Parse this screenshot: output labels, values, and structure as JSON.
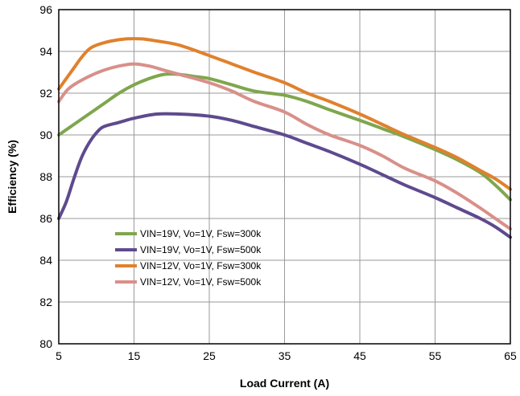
{
  "chart_data": {
    "type": "line",
    "title": "",
    "xlabel": "Load Current (A)",
    "ylabel": "Efficiency (%)",
    "xlim": [
      5,
      65
    ],
    "ylim": [
      80,
      96
    ],
    "x_ticks": [
      5,
      15,
      25,
      35,
      45,
      55,
      65
    ],
    "y_ticks": [
      80,
      82,
      84,
      86,
      88,
      90,
      92,
      94,
      96
    ],
    "grid": true,
    "legend_position": "lower-left",
    "series": [
      {
        "name": "VIN=19V, Vo=1V, Fsw=300k",
        "color": "#7fa64e",
        "points": [
          [
            5,
            90.0
          ],
          [
            7,
            90.5
          ],
          [
            9,
            91.0
          ],
          [
            11,
            91.5
          ],
          [
            13,
            92.0
          ],
          [
            15,
            92.4
          ],
          [
            17,
            92.7
          ],
          [
            19,
            92.9
          ],
          [
            21,
            92.9
          ],
          [
            23,
            92.8
          ],
          [
            25,
            92.7
          ],
          [
            28,
            92.4
          ],
          [
            31,
            92.1
          ],
          [
            35,
            91.9
          ],
          [
            38,
            91.6
          ],
          [
            41,
            91.2
          ],
          [
            45,
            90.7
          ],
          [
            48,
            90.3
          ],
          [
            51,
            89.9
          ],
          [
            55,
            89.3
          ],
          [
            58,
            88.8
          ],
          [
            61,
            88.2
          ],
          [
            63,
            87.6
          ],
          [
            65,
            86.9
          ]
        ]
      },
      {
        "name": "VIN=19V, Vo=1V, Fsw=500k",
        "color": "#5e4a8e",
        "points": [
          [
            5,
            86.0
          ],
          [
            6,
            86.8
          ],
          [
            7,
            87.9
          ],
          [
            8,
            88.9
          ],
          [
            9,
            89.6
          ],
          [
            10,
            90.1
          ],
          [
            11,
            90.4
          ],
          [
            13,
            90.6
          ],
          [
            15,
            90.8
          ],
          [
            18,
            91.0
          ],
          [
            21,
            91.0
          ],
          [
            25,
            90.9
          ],
          [
            28,
            90.7
          ],
          [
            31,
            90.4
          ],
          [
            35,
            90.0
          ],
          [
            38,
            89.6
          ],
          [
            41,
            89.2
          ],
          [
            45,
            88.6
          ],
          [
            48,
            88.1
          ],
          [
            51,
            87.6
          ],
          [
            55,
            87.0
          ],
          [
            58,
            86.5
          ],
          [
            61,
            86.0
          ],
          [
            63,
            85.6
          ],
          [
            65,
            85.1
          ]
        ]
      },
      {
        "name": "VIN=12V, Vo=1V, Fsw=300k",
        "color": "#e0812d",
        "points": [
          [
            5,
            92.2
          ],
          [
            6,
            92.7
          ],
          [
            7,
            93.2
          ],
          [
            8,
            93.7
          ],
          [
            9,
            94.1
          ],
          [
            10,
            94.3
          ],
          [
            12,
            94.5
          ],
          [
            14,
            94.6
          ],
          [
            16,
            94.6
          ],
          [
            18,
            94.5
          ],
          [
            21,
            94.3
          ],
          [
            25,
            93.8
          ],
          [
            28,
            93.4
          ],
          [
            31,
            93.0
          ],
          [
            35,
            92.5
          ],
          [
            38,
            92.0
          ],
          [
            41,
            91.6
          ],
          [
            45,
            91.0
          ],
          [
            48,
            90.5
          ],
          [
            51,
            90.0
          ],
          [
            55,
            89.4
          ],
          [
            58,
            88.9
          ],
          [
            61,
            88.3
          ],
          [
            63,
            87.9
          ],
          [
            65,
            87.4
          ]
        ]
      },
      {
        "name": "VIN=12V, Vo=1V, Fsw=500k",
        "color": "#d89089",
        "points": [
          [
            5,
            91.6
          ],
          [
            6,
            92.1
          ],
          [
            7,
            92.4
          ],
          [
            9,
            92.8
          ],
          [
            11,
            93.1
          ],
          [
            13,
            93.3
          ],
          [
            15,
            93.4
          ],
          [
            17,
            93.3
          ],
          [
            19,
            93.1
          ],
          [
            21,
            92.9
          ],
          [
            25,
            92.5
          ],
          [
            28,
            92.1
          ],
          [
            31,
            91.6
          ],
          [
            35,
            91.1
          ],
          [
            38,
            90.5
          ],
          [
            41,
            90.0
          ],
          [
            45,
            89.5
          ],
          [
            48,
            89.0
          ],
          [
            51,
            88.4
          ],
          [
            55,
            87.8
          ],
          [
            58,
            87.2
          ],
          [
            61,
            86.5
          ],
          [
            63,
            86.0
          ],
          [
            65,
            85.5
          ]
        ]
      }
    ]
  }
}
